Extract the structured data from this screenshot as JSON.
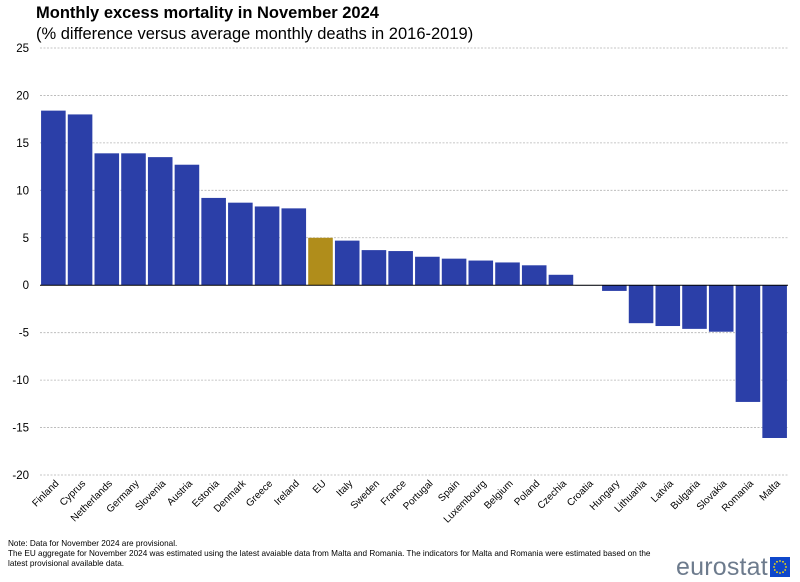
{
  "chart_data": {
    "type": "bar",
    "title": "Monthly excess mortality in November 2024",
    "subtitle": "(% difference versus average monthly deaths in 2016-2019)",
    "xlabel": "",
    "ylabel": "",
    "ylim": [
      -20,
      25
    ],
    "yticks": [
      "25",
      "20",
      "15",
      "10",
      "5",
      "0",
      "-5",
      "-10",
      "-15",
      "-20"
    ],
    "grid": true,
    "categories": [
      "Finland",
      "Cyprus",
      "Netherlands",
      "Germany",
      "Slovenia",
      "Austria",
      "Estonia",
      "Denmark",
      "Greece",
      "Ireland",
      "EU",
      "Italy",
      "Sweden",
      "France",
      "Portugal",
      "Spain",
      "Luxembourg",
      "Belgium",
      "Poland",
      "Czechia",
      "Croatia",
      "Hungary",
      "Lithuania",
      "Latvia",
      "Bulgaria",
      "Slovakia",
      "Romania",
      "Malta"
    ],
    "values": [
      18.4,
      18.0,
      13.9,
      13.9,
      13.5,
      12.7,
      9.2,
      8.7,
      8.3,
      8.1,
      5.0,
      4.7,
      3.7,
      3.6,
      3.0,
      2.8,
      2.6,
      2.4,
      2.1,
      1.1,
      0.0,
      -0.6,
      -4.0,
      -4.3,
      -4.6,
      -4.9,
      -12.3,
      -16.1
    ],
    "highlight": "EU",
    "bar_color": "#2b3fa8",
    "highlight_color": "#b08d1b"
  },
  "notes": {
    "line1": "Note: Data  for November 2024 are provisional.",
    "line2": "The EU  aggregate for November 2024 was estimated using the latest avaiable data  from Malta and Romania.  The indicators for Malta and Romania  were estimated based on the",
    "line3": "latest provisional available data."
  },
  "logo": {
    "text": "eurostat"
  }
}
